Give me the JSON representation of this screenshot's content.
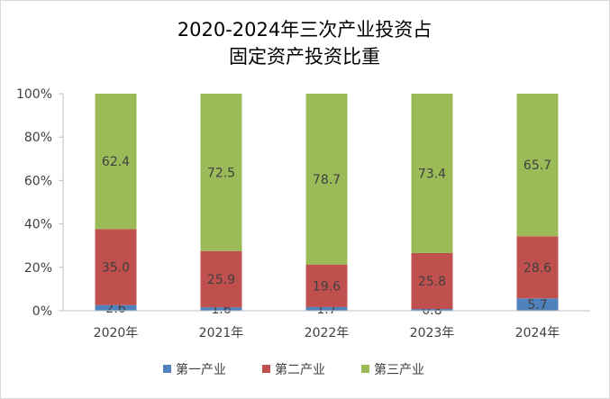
{
  "chart_data": {
    "type": "bar",
    "stacked": true,
    "title": [
      "2020-2024年三次产业投资占",
      "固定资产投资比重"
    ],
    "categories": [
      "2020年",
      "2021年",
      "2022年",
      "2023年",
      "2024年"
    ],
    "series": [
      {
        "name": "第一产业",
        "color": "#4f81bd",
        "values": [
          2.6,
          1.6,
          1.7,
          0.8,
          5.7
        ]
      },
      {
        "name": "第二产业",
        "color": "#c0504d",
        "values": [
          35.0,
          25.9,
          19.6,
          25.8,
          28.6
        ]
      },
      {
        "name": "第三产业",
        "color": "#9bbb59",
        "values": [
          62.4,
          72.5,
          78.7,
          73.4,
          65.7
        ]
      }
    ],
    "yticks": [
      "0%",
      "20%",
      "40%",
      "60%",
      "80%",
      "100%"
    ],
    "ylim": [
      0,
      100
    ],
    "xlabel": "",
    "ylabel": "",
    "legend": "bottom",
    "grid": false
  }
}
